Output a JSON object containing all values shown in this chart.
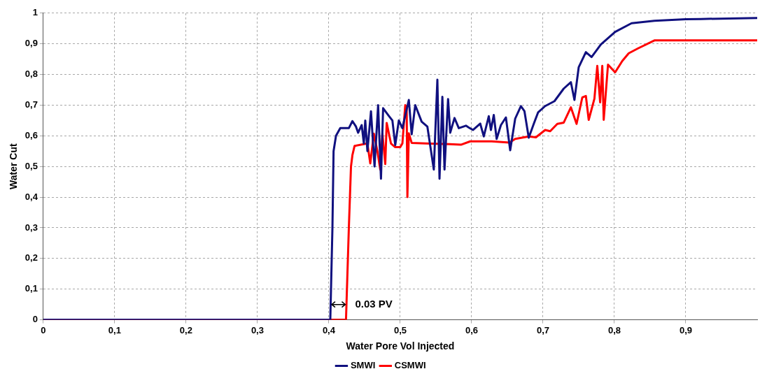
{
  "chart_data": {
    "type": "line",
    "xlabel": "Water Pore Vol Injected",
    "ylabel": "Water Cut",
    "xlim": [
      0,
      1
    ],
    "ylim": [
      0,
      1
    ],
    "xticks": [
      0,
      {
        "value": 0.1,
        "label": "0,1"
      },
      {
        "value": 0.2,
        "label": "0,2"
      },
      {
        "value": 0.3,
        "label": "0,3"
      },
      {
        "value": 0.4,
        "label": "0,4"
      },
      {
        "value": 0.5,
        "label": "0,5"
      },
      {
        "value": 0.6,
        "label": "0,6"
      },
      {
        "value": 0.7,
        "label": "0,7"
      },
      {
        "value": 0.8,
        "label": "0,8"
      },
      {
        "value": 0.9,
        "label": "0,9"
      }
    ],
    "yticks": [
      0,
      {
        "value": 0.1,
        "label": "0,1"
      },
      {
        "value": 0.2,
        "label": "0,2"
      },
      {
        "value": 0.3,
        "label": "0,3"
      },
      {
        "value": 0.4,
        "label": "0,4"
      },
      {
        "value": 0.5,
        "label": "0,5"
      },
      {
        "value": 0.6,
        "label": "0,6"
      },
      {
        "value": 0.7,
        "label": "0,7"
      },
      {
        "value": 0.8,
        "label": "0,8"
      },
      {
        "value": 0.9,
        "label": "0,9"
      },
      1
    ],
    "grid": true,
    "legend": "bottom",
    "marker": "none",
    "line_style": "solid",
    "annotations": [
      {
        "text": "0.03 PV",
        "x": 0.425,
        "y": 0.05
      }
    ],
    "series": [
      {
        "name": "SMWI",
        "color": "#10107f",
        "x": [
          0,
          0.402,
          0.405,
          0.4066,
          0.41,
          0.416,
          0.428,
          0.433,
          0.438,
          0.441,
          0.446,
          0.449,
          0.451,
          0.454,
          0.459,
          0.464,
          0.469,
          0.473,
          0.476,
          0.484,
          0.489,
          0.493,
          0.498,
          0.503,
          0.512,
          0.516,
          0.521,
          0.53,
          0.538,
          0.547,
          0.552,
          0.555,
          0.559,
          0.562,
          0.567,
          0.57,
          0.576,
          0.582,
          0.592,
          0.596,
          0.602,
          0.612,
          0.617,
          0.624,
          0.627,
          0.631,
          0.635,
          0.641,
          0.648,
          0.654,
          0.661,
          0.669,
          0.674,
          0.68,
          0.687,
          0.693,
          0.703,
          0.716,
          0.729,
          0.739,
          0.744,
          0.75,
          0.76,
          0.768,
          0.781,
          0.801,
          0.824,
          0.856,
          0.9,
          0.921,
          1.0
        ],
        "values": [
          0,
          0,
          0.3,
          0.55,
          0.6,
          0.625,
          0.625,
          0.648,
          0.63,
          0.61,
          0.635,
          0.575,
          0.65,
          0.55,
          0.68,
          0.5,
          0.7,
          0.46,
          0.69,
          0.665,
          0.65,
          0.57,
          0.65,
          0.625,
          0.717,
          0.605,
          0.7,
          0.646,
          0.63,
          0.49,
          0.783,
          0.46,
          0.727,
          0.49,
          0.72,
          0.61,
          0.658,
          0.625,
          0.633,
          0.627,
          0.619,
          0.64,
          0.598,
          0.664,
          0.619,
          0.668,
          0.59,
          0.635,
          0.66,
          0.553,
          0.656,
          0.697,
          0.68,
          0.594,
          0.639,
          0.676,
          0.697,
          0.713,
          0.754,
          0.775,
          0.717,
          0.824,
          0.873,
          0.857,
          0.898,
          0.939,
          0.967,
          0.975,
          0.98,
          0.981,
          0.984
        ]
      },
      {
        "name": "CSMWI",
        "color": "#ff0000",
        "x": [
          0,
          0.424,
          0.428,
          0.431,
          0.433,
          0.436,
          0.454,
          0.458,
          0.463,
          0.468,
          0.472,
          0.475,
          0.479,
          0.481,
          0.487,
          0.493,
          0.5,
          0.503,
          0.507,
          0.509,
          0.51,
          0.512,
          0.516,
          0.536,
          0.569,
          0.585,
          0.598,
          0.628,
          0.653,
          0.661,
          0.68,
          0.69,
          0.703,
          0.71,
          0.72,
          0.729,
          0.739,
          0.747,
          0.755,
          0.76,
          0.764,
          0.772,
          0.776,
          0.78,
          0.783,
          0.785,
          0.791,
          0.801,
          0.811,
          0.82,
          0.833,
          0.856,
          1.0
        ],
        "values": [
          0,
          0,
          0.3,
          0.5,
          0.537,
          0.567,
          0.575,
          0.51,
          0.607,
          0.55,
          0.49,
          0.608,
          0.508,
          0.642,
          0.575,
          0.563,
          0.563,
          0.575,
          0.7,
          0.69,
          0.4,
          0.608,
          0.577,
          0.575,
          0.573,
          0.571,
          0.582,
          0.582,
          0.578,
          0.59,
          0.598,
          0.595,
          0.619,
          0.615,
          0.639,
          0.643,
          0.693,
          0.639,
          0.725,
          0.73,
          0.652,
          0.721,
          0.828,
          0.709,
          0.828,
          0.652,
          0.832,
          0.807,
          0.844,
          0.869,
          0.885,
          0.911,
          0.911
        ]
      }
    ]
  }
}
